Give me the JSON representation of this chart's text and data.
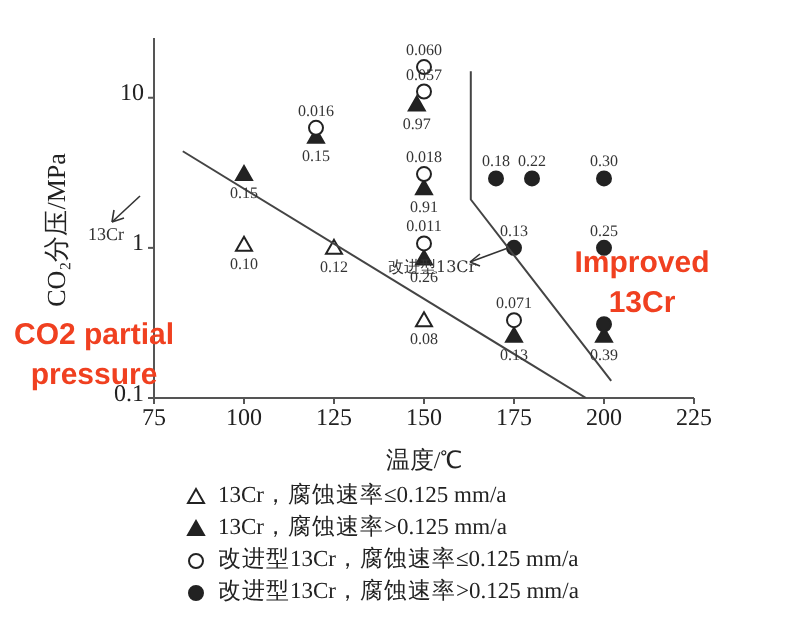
{
  "chart_data": {
    "type": "scatter",
    "xlabel": "温度/℃",
    "ylabel": "CO₂分压/MPa",
    "xlim": [
      75,
      225
    ],
    "xticks": [
      75,
      100,
      125,
      150,
      175,
      200,
      225
    ],
    "ylim": [
      0.1,
      25
    ],
    "yticks": [
      0.1,
      1,
      10
    ],
    "log": "y",
    "legend": "bottom",
    "series": [
      {
        "name": "13Cr，腐蚀速率≤0.125 mm/a",
        "marker": "triangle",
        "color": "#ffffff",
        "x": [
          100,
          125,
          150
        ],
        "values": [
          1.05,
          1.0,
          0.33
        ]
      },
      {
        "name": "13Cr，腐蚀速率>0.125 mm/a",
        "marker": "triangle",
        "color": "#222222",
        "x": [
          100,
          120,
          148,
          150,
          150,
          175,
          200
        ],
        "values": [
          3.1,
          5.5,
          9,
          2.5,
          0.85,
          0.26,
          0.26
        ]
      },
      {
        "name": "改进型13Cr，腐蚀速率≤0.125 mm/a",
        "marker": "circle",
        "color": "#ffffff",
        "x": [
          120,
          150,
          150,
          150,
          150,
          175
        ],
        "values": [
          6.3,
          16,
          11,
          3.1,
          1.07,
          0.33
        ]
      },
      {
        "name": "改进型13Cr，腐蚀速率>0.125 mm/a",
        "marker": "circle",
        "color": "#222222",
        "x": [
          170,
          180,
          200,
          175,
          200,
          200
        ],
        "values": [
          2.9,
          2.9,
          2.9,
          1.0,
          1.0,
          0.31
        ]
      },
      {
        "type": "line",
        "marker": "none",
        "color": "#444444",
        "x": [
          83,
          195
        ],
        "values": [
          4.4,
          0.1
        ]
      },
      {
        "type": "line",
        "marker": "none",
        "color": "#444444",
        "x": [
          163,
          163,
          202
        ],
        "values": [
          15,
          2.1,
          0.13
        ]
      }
    ],
    "annotations": [
      "13Cr",
      "改进型13Cr",
      "CO2 partial pressure",
      "Improved 13Cr",
      {
        "text": "0.10",
        "x": 100,
        "y": 1.05
      },
      {
        "text": "0.12",
        "x": 125,
        "y": 1.0
      },
      {
        "text": "0.08",
        "x": 150,
        "y": 0.33
      },
      {
        "text": "0.15",
        "x": 100,
        "y": 3.1
      },
      {
        "text": "0.15",
        "x": 120,
        "y": 5.5
      },
      {
        "text": "0.97",
        "x": 148,
        "y": 9
      },
      {
        "text": "0.91",
        "x": 150,
        "y": 2.5
      },
      {
        "text": "0.26",
        "x": 150,
        "y": 0.85
      },
      {
        "text": "0.13",
        "x": 175,
        "y": 0.26
      },
      {
        "text": "0.39",
        "x": 200,
        "y": 0.26
      },
      {
        "text": "0.016",
        "x": 120,
        "y": 6.3
      },
      {
        "text": "0.060",
        "x": 150,
        "y": 16
      },
      {
        "text": "0.057",
        "x": 150,
        "y": 11
      },
      {
        "text": "0.018",
        "x": 150,
        "y": 3.1
      },
      {
        "text": "0.011",
        "x": 150,
        "y": 1.07
      },
      {
        "text": "0.071",
        "x": 175,
        "y": 0.33
      },
      {
        "text": "0.18",
        "x": 170,
        "y": 2.9
      },
      {
        "text": "0.22",
        "x": 180,
        "y": 2.9
      },
      {
        "text": "0.30",
        "x": 200,
        "y": 2.9
      },
      {
        "text": "0.13",
        "x": 175,
        "y": 1.0
      },
      {
        "text": "0.25",
        "x": 200,
        "y": 1.0
      }
    ]
  }
}
